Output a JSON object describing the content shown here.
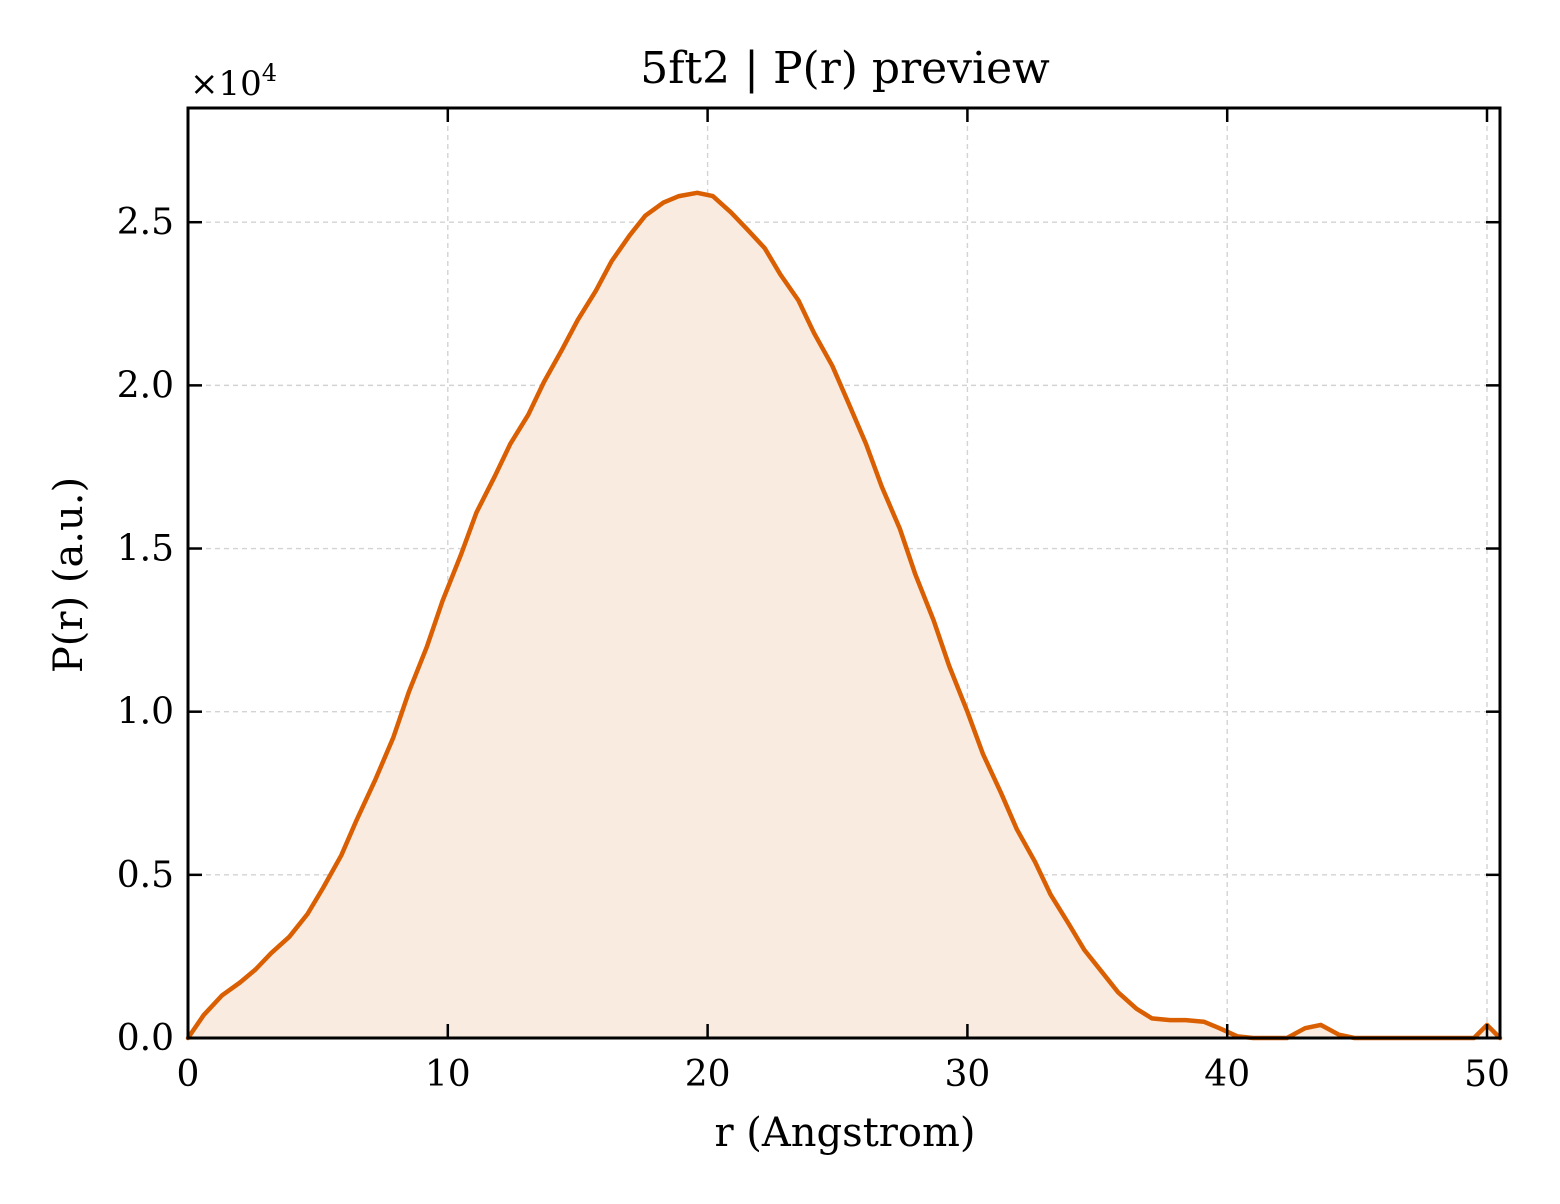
{
  "chart_data": {
    "type": "area",
    "title": "5ft2 | P(r) preview",
    "xlabel": "r (Angstrom)",
    "ylabel": "P(r) (a.u.)",
    "y_multiplier": {
      "base": "×10",
      "exponent": "4"
    },
    "xlim": [
      0,
      50.5
    ],
    "ylim": [
      0,
      2.85
    ],
    "x_ticks": [
      0,
      10,
      20,
      30,
      40,
      50
    ],
    "x_tick_labels": [
      "0",
      "10",
      "20",
      "30",
      "40",
      "50"
    ],
    "y_ticks": [
      0.0,
      0.5,
      1.0,
      1.5,
      2.0,
      2.5
    ],
    "y_tick_labels": [
      "0.0",
      "0.5",
      "1.0",
      "1.5",
      "2.0",
      "2.5"
    ],
    "grid": true,
    "line_color": "#d95f02",
    "fill_color": "#f9ebe0",
    "series": [
      {
        "x": [
          0.0,
          0.6,
          1.3,
          2.0,
          2.6,
          3.2,
          3.9,
          4.6,
          5.2,
          5.9,
          6.5,
          7.2,
          7.9,
          8.5,
          9.2,
          9.8,
          10.5,
          11.1,
          11.8,
          12.4,
          13.1,
          13.7,
          14.4,
          15.0,
          15.7,
          16.3,
          17.0,
          17.6,
          18.3,
          18.9,
          19.6,
          20.2,
          20.9,
          21.5,
          22.2,
          22.8,
          23.5,
          24.1,
          24.8,
          25.4,
          26.1,
          26.7,
          27.4,
          28.0,
          28.7,
          29.3,
          30.0,
          30.6,
          31.3,
          31.9,
          32.6,
          33.2,
          33.9,
          34.5,
          35.2,
          35.8,
          36.5,
          37.1,
          37.8,
          38.4,
          39.1,
          39.7,
          40.4,
          41.0,
          41.7,
          42.3,
          43.0,
          43.6,
          44.3,
          44.9,
          45.6,
          46.2,
          46.9,
          47.5,
          48.2,
          48.8,
          49.5,
          50.0,
          50.5
        ],
        "y": [
          0.0,
          0.07,
          0.13,
          0.17,
          0.21,
          0.26,
          0.31,
          0.38,
          0.46,
          0.56,
          0.67,
          0.79,
          0.92,
          1.06,
          1.2,
          1.34,
          1.48,
          1.61,
          1.72,
          1.82,
          1.91,
          2.01,
          2.11,
          2.2,
          2.29,
          2.38,
          2.46,
          2.52,
          2.56,
          2.58,
          2.59,
          2.58,
          2.53,
          2.48,
          2.42,
          2.34,
          2.26,
          2.16,
          2.06,
          1.95,
          1.82,
          1.69,
          1.56,
          1.42,
          1.28,
          1.14,
          1.0,
          0.87,
          0.75,
          0.64,
          0.54,
          0.44,
          0.35,
          0.27,
          0.2,
          0.14,
          0.09,
          0.06,
          0.055,
          0.055,
          0.05,
          0.03,
          0.005,
          0.0,
          0.0,
          0.0,
          0.03,
          0.04,
          0.01,
          0.0,
          0.0,
          0.0,
          0.0,
          0.0,
          0.0,
          0.0,
          0.0,
          0.04,
          0.0
        ]
      }
    ]
  }
}
